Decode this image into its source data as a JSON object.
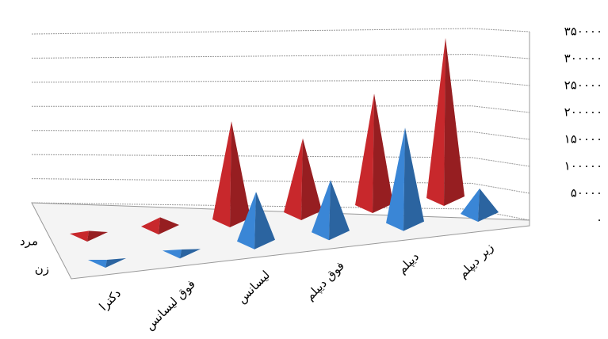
{
  "chart_data": {
    "type": "pyramid3d",
    "categories": [
      "دکترا",
      "فوق لیسانس",
      "لیسانس",
      "فوق دیپلم",
      "دیپلم",
      "زیر دیپلم"
    ],
    "series": [
      {
        "name": "مرد",
        "color": "#c8282c",
        "values": [
          8000,
          20000,
          185000,
          140000,
          210000,
          300000
        ]
      },
      {
        "name": "زن",
        "color": "#3a86d6",
        "values": [
          3000,
          5000,
          95000,
          100000,
          180000,
          50000
        ]
      }
    ],
    "ylim": [
      0,
      350000
    ],
    "yticks": [
      {
        "value": 0,
        "label": "۰"
      },
      {
        "value": 50000,
        "label": "۵۰۰۰۰"
      },
      {
        "value": 100000,
        "label": "۱۰۰۰۰۰"
      },
      {
        "value": 150000,
        "label": "۱۵۰۰۰۰"
      },
      {
        "value": 200000,
        "label": "۲۰۰۰۰۰"
      },
      {
        "value": 250000,
        "label": "۲۵۰۰۰۰"
      },
      {
        "value": 300000,
        "label": "۳۰۰۰۰۰"
      },
      {
        "value": 350000,
        "label": "۳۵۰۰۰۰"
      }
    ],
    "grid": true
  }
}
